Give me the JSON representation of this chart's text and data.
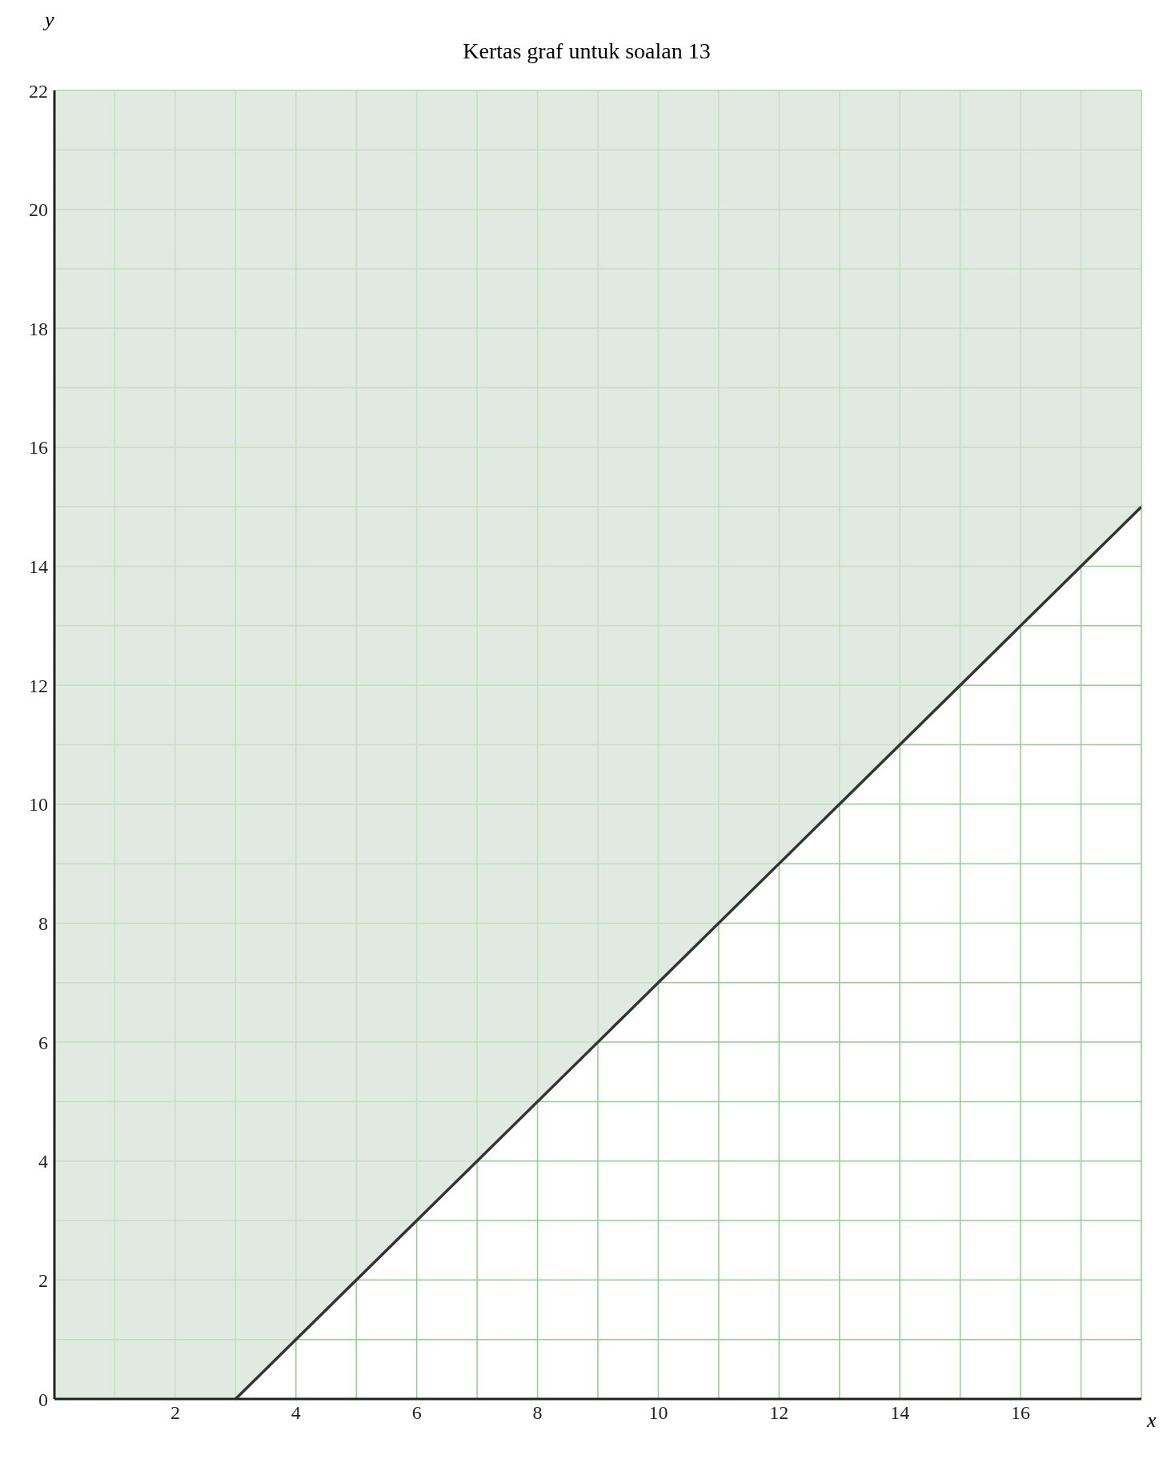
{
  "chart_data": {
    "type": "line",
    "title": "Kertas graf untuk soalan 13",
    "xlabel": "x",
    "ylabel": "y",
    "series": [
      {
        "type": "line",
        "color": "#333333",
        "x": [
          0,
          3,
          18
        ],
        "values": [
          null,
          0,
          15
        ],
        "lower": [
          0,
          0,
          15
        ],
        "upper": [
          22,
          22,
          22
        ]
      }
    ],
    "xlim": [
      0,
      18
    ],
    "ylim": [
      0,
      22
    ],
    "xticks": [
      {
        "value": 0,
        "label": null
      },
      {
        "value": 1,
        "label": null
      },
      2,
      {
        "value": 3,
        "label": null
      },
      4,
      {
        "value": 5,
        "label": null
      },
      6,
      {
        "value": 7,
        "label": null
      },
      8,
      {
        "value": 9,
        "label": null
      },
      10,
      {
        "value": 11,
        "label": null
      },
      12,
      {
        "value": 13,
        "label": null
      },
      14,
      {
        "value": 15,
        "label": null
      },
      16,
      {
        "value": 17,
        "label": null
      },
      {
        "value": 18,
        "label": null
      }
    ],
    "yticks": [
      0,
      {
        "value": 1,
        "label": null
      },
      2,
      {
        "value": 3,
        "label": null
      },
      4,
      {
        "value": 5,
        "label": null
      },
      6,
      {
        "value": 7,
        "label": null
      },
      8,
      {
        "value": 9,
        "label": null
      },
      10,
      {
        "value": 11,
        "label": null
      },
      12,
      {
        "value": 13,
        "label": null
      },
      14,
      {
        "value": 15,
        "label": null
      },
      16,
      {
        "value": 17,
        "label": null
      },
      18,
      {
        "value": 19,
        "label": null
      },
      20,
      {
        "value": 21,
        "label": null
      },
      22
    ],
    "grid": true,
    "marker": "none",
    "line_style": "solid"
  }
}
